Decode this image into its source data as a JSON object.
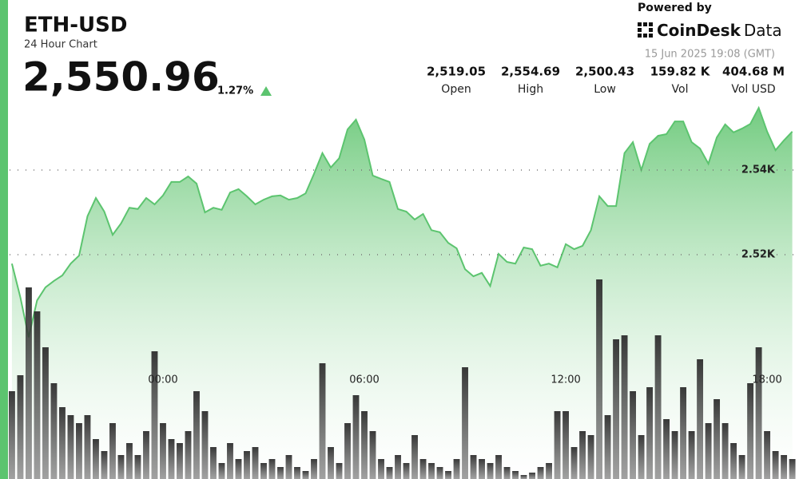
{
  "header": {
    "title": "ETH-USD",
    "subtitle": "24 Hour Chart",
    "price": "2,550.96",
    "change": "1.27%",
    "powered_by": "Powered by",
    "brand": "CoinDesk",
    "brand_suffix": "Data",
    "timestamp": "15 Jun 2025 19:08 (GMT)"
  },
  "stats": [
    {
      "value": "2,519.05",
      "label": "Open"
    },
    {
      "value": "2,554.69",
      "label": "High"
    },
    {
      "value": "2,500.43",
      "label": "Low"
    },
    {
      "value": "159.82 K",
      "label": "Vol"
    },
    {
      "value": "404.68 M",
      "label": "Vol USD"
    }
  ],
  "chart_data": {
    "type": "area",
    "x": [
      19.5,
      19.75,
      20,
      20.25,
      20.5,
      20.75,
      21,
      21.25,
      21.5,
      21.75,
      22,
      22.25,
      22.5,
      22.75,
      23,
      23.25,
      23.5,
      23.75,
      24,
      24.25,
      24.5,
      24.75,
      25,
      25.25,
      25.5,
      25.75,
      26,
      26.25,
      26.5,
      26.75,
      27,
      27.25,
      27.5,
      27.75,
      28,
      28.25,
      28.5,
      28.75,
      29,
      29.25,
      29.5,
      29.75,
      30,
      30.25,
      30.5,
      30.75,
      31,
      31.25,
      31.5,
      31.75,
      32,
      32.25,
      32.5,
      32.75,
      33,
      33.25,
      33.5,
      33.75,
      34,
      34.25,
      34.5,
      34.75,
      35,
      35.25,
      35.5,
      35.75,
      36,
      36.25,
      36.5,
      36.75,
      37,
      37.25,
      37.5,
      37.75,
      38,
      38.25,
      38.5,
      38.75,
      39,
      39.25,
      39.5,
      39.75,
      40,
      40.25,
      40.5,
      40.75,
      41,
      41.25,
      41.5,
      41.75,
      42,
      42.25,
      42.5,
      42.75
    ],
    "series": [
      {
        "type": "area",
        "color": "#5cc46f",
        "values": [
          2517.9,
          2510.0,
          2500.5,
          2509.2,
          2512.3,
          2513.8,
          2515.1,
          2517.9,
          2519.8,
          2529.1,
          2533.4,
          2530.2,
          2524.7,
          2527.4,
          2531.1,
          2530.8,
          2533.4,
          2531.9,
          2534.0,
          2537.2,
          2537.2,
          2538.5,
          2536.8,
          2530.0,
          2531.1,
          2530.6,
          2534.7,
          2535.5,
          2533.8,
          2531.9,
          2533.0,
          2533.8,
          2534.0,
          2533.0,
          2533.4,
          2534.5,
          2539.1,
          2544.0,
          2540.6,
          2542.8,
          2549.6,
          2551.9,
          2547.2,
          2538.7,
          2537.9,
          2537.2,
          2530.8,
          2530.2,
          2528.3,
          2529.6,
          2525.8,
          2525.3,
          2522.8,
          2521.5,
          2516.6,
          2514.9,
          2515.7,
          2512.6,
          2520.2,
          2518.3,
          2517.9,
          2521.7,
          2521.3,
          2517.4,
          2517.9,
          2517.0,
          2522.5,
          2521.3,
          2522.1,
          2525.8,
          2533.8,
          2531.5,
          2531.5,
          2544.0,
          2546.6,
          2540.0,
          2546.2,
          2548.1,
          2548.5,
          2551.5,
          2551.5,
          2546.6,
          2545.1,
          2541.5,
          2547.7,
          2550.8,
          2548.9,
          2549.8,
          2550.9,
          2554.7,
          2549.1,
          2544.7,
          2547.0,
          2549.1
        ]
      },
      {
        "type": "bar",
        "axis": "y2",
        "color": "#3a3a3a",
        "values": [
          110,
          130,
          240,
          210,
          165,
          120,
          90,
          80,
          70,
          80,
          50,
          35,
          70,
          30,
          45,
          30,
          60,
          160,
          70,
          50,
          45,
          60,
          110,
          85,
          40,
          20,
          45,
          25,
          35,
          40,
          20,
          25,
          15,
          30,
          15,
          10,
          25,
          145,
          40,
          20,
          70,
          105,
          85,
          60,
          25,
          15,
          30,
          20,
          55,
          25,
          20,
          15,
          10,
          25,
          140,
          30,
          25,
          20,
          30,
          15,
          10,
          5,
          8,
          15,
          20,
          85,
          85,
          40,
          60,
          55,
          250,
          80,
          175,
          180,
          110,
          55,
          115,
          180,
          75,
          60,
          115,
          60,
          150,
          70,
          100,
          70,
          45,
          30,
          120,
          165,
          60,
          35,
          30,
          25
        ]
      }
    ],
    "xlim": [
      19.43,
      42.95
    ],
    "xticks": [
      {
        "value": 24,
        "label": "00:00"
      },
      {
        "value": 30,
        "label": "06:00"
      },
      {
        "value": 36,
        "label": "12:00"
      },
      {
        "value": 42,
        "label": "18:00"
      }
    ],
    "ylim": [
      2467,
      2555
    ],
    "yticks": [
      {
        "value": 2520,
        "label": "2.52K"
      },
      {
        "value": 2540,
        "label": "2.54K"
      }
    ],
    "y2lim": [
      0,
      260
    ],
    "grid": true
  }
}
